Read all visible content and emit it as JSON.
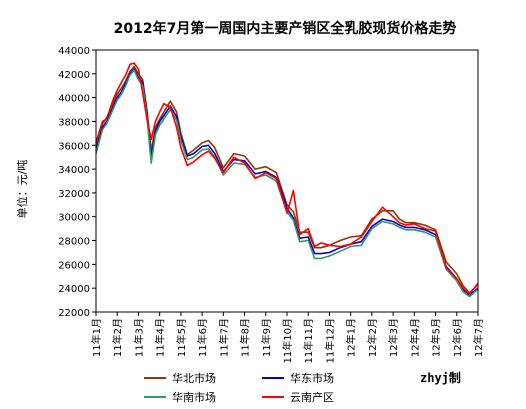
{
  "chart_data": {
    "type": "line",
    "title": "2012年7月第一周国内主要产销区全乳胶现货价格走势",
    "ylabel": "单位：元/吨",
    "ylim": [
      22000,
      44000
    ],
    "yticks": [
      22000,
      24000,
      26000,
      28000,
      30000,
      32000,
      34000,
      36000,
      38000,
      40000,
      42000,
      44000
    ],
    "x_tick_labels": [
      "11年1月",
      "11年2月",
      "11年3月",
      "11年4月",
      "11年5月",
      "11年6月",
      "11年7月",
      "11年8月",
      "11年9月",
      "11年10月",
      "11年11月",
      "11年12月",
      "12年1月",
      "12年2月",
      "12年3月",
      "12年4月",
      "12年5月",
      "12年6月",
      "12年7月"
    ],
    "x": [
      0,
      0.3,
      0.5,
      0.8,
      1.0,
      1.2,
      1.4,
      1.6,
      1.8,
      2.0,
      2.2,
      2.4,
      2.6,
      2.8,
      3.0,
      3.2,
      3.5,
      3.8,
      4.0,
      4.3,
      4.6,
      5.0,
      5.3,
      5.6,
      6.0,
      6.5,
      7.0,
      7.5,
      8.0,
      8.5,
      9.0,
      9.3,
      9.6,
      10.0,
      10.3,
      10.6,
      11.0,
      11.5,
      12.0,
      12.5,
      13.0,
      13.5,
      14.0,
      14.3,
      14.6,
      15.0,
      15.5,
      16.0,
      16.5,
      17.0,
      17.3,
      17.6,
      18.0
    ],
    "series": [
      {
        "name": "华北市场",
        "color": "#993300",
        "values": [
          35800,
          37800,
          38300,
          39500,
          40300,
          40800,
          41400,
          42200,
          42600,
          42000,
          41500,
          39000,
          35500,
          37500,
          38200,
          38800,
          39700,
          38800,
          37000,
          35200,
          35600,
          36200,
          36400,
          35800,
          34100,
          35300,
          35100,
          34000,
          34200,
          33700,
          31000,
          30400,
          28700,
          28700,
          27400,
          27400,
          27600,
          28000,
          28300,
          28400,
          29800,
          30500,
          30500,
          29800,
          29500,
          29500,
          29300,
          28900,
          26200,
          25200,
          24200,
          23600,
          24300
        ]
      },
      {
        "name": "华东市场",
        "color": "#0000cc",
        "values": [
          35500,
          37500,
          38000,
          39200,
          40000,
          40500,
          41200,
          42000,
          42400,
          41700,
          41300,
          38700,
          34900,
          37200,
          38000,
          38500,
          39300,
          38400,
          36700,
          35100,
          35300,
          35900,
          36000,
          35300,
          33800,
          34800,
          34700,
          33600,
          33800,
          33300,
          30700,
          29900,
          28200,
          28300,
          26900,
          26900,
          27000,
          27400,
          27700,
          27900,
          29200,
          29800,
          29600,
          29300,
          29100,
          29100,
          28900,
          28500,
          25800,
          24800,
          23900,
          23400,
          24000
        ]
      },
      {
        "name": "华南市场",
        "color": "#339966",
        "values": [
          35300,
          37300,
          37800,
          39000,
          39800,
          40300,
          41000,
          41900,
          42300,
          41500,
          41000,
          38400,
          34500,
          36900,
          37700,
          38200,
          39000,
          38100,
          36400,
          34800,
          35000,
          35600,
          35700,
          35000,
          33500,
          34500,
          34400,
          33300,
          33500,
          33000,
          30400,
          29700,
          27900,
          28000,
          26500,
          26500,
          26700,
          27100,
          27500,
          27600,
          29000,
          29600,
          29400,
          29100,
          28900,
          28900,
          28700,
          28300,
          25600,
          24600,
          23700,
          23300,
          23900
        ]
      },
      {
        "name": "云南产区",
        "color": "#ff0000",
        "values": [
          36200,
          38000,
          38200,
          39800,
          40600,
          41300,
          41900,
          42800,
          42900,
          42400,
          40400,
          38200,
          36500,
          38000,
          38800,
          39500,
          39200,
          37500,
          35800,
          34300,
          34600,
          35200,
          35500,
          34900,
          33700,
          35000,
          34500,
          33200,
          33700,
          33200,
          30300,
          32200,
          28500,
          29000,
          27500,
          27800,
          27600,
          27500,
          27700,
          28300,
          29600,
          30800,
          30000,
          29500,
          29300,
          29400,
          29000,
          28800,
          25700,
          24800,
          24000,
          23500,
          24400
        ]
      }
    ],
    "legend": "bottom",
    "grid": false,
    "credit": "zhyj制"
  }
}
